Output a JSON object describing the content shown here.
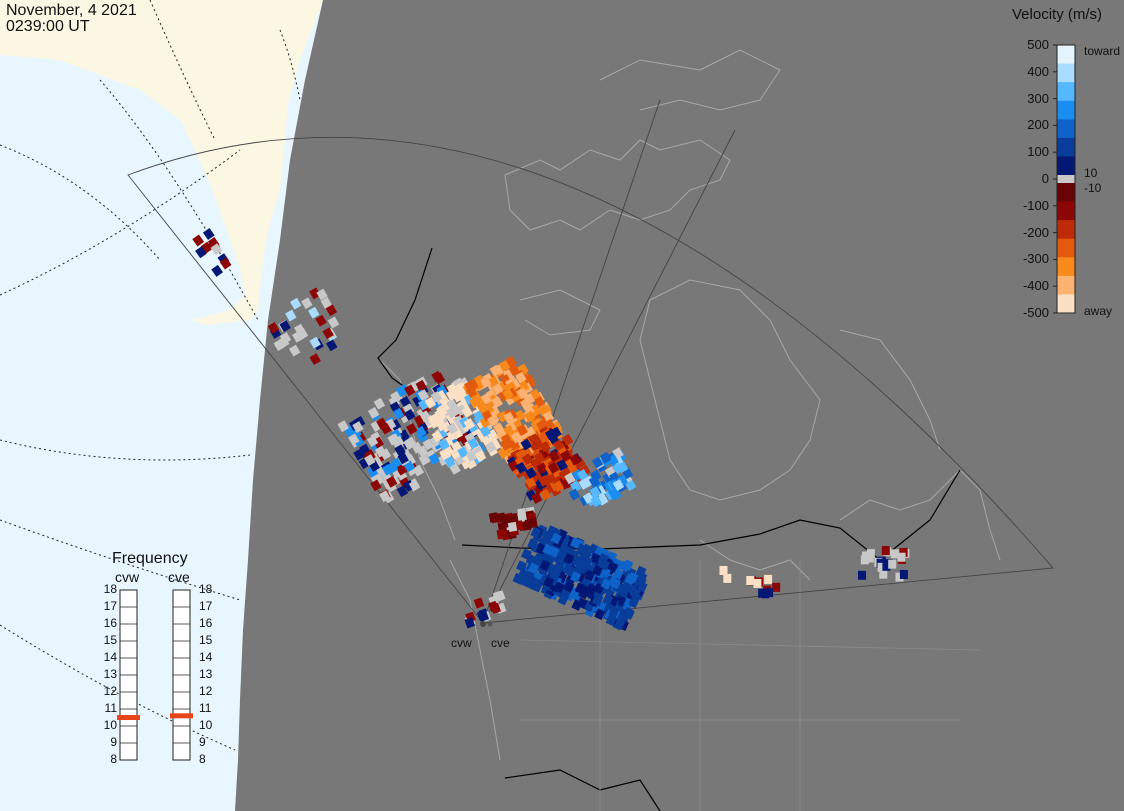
{
  "title": {
    "date": "November, 4 2021",
    "time": "0239:00 UT"
  },
  "colorbar": {
    "title": "Velocity (m/s)",
    "ticks": [
      "500",
      "400",
      "300",
      "200",
      "100",
      "0",
      "-100",
      "-200",
      "-300",
      "-400",
      "-500"
    ],
    "label_toward": "toward",
    "label_away": "away",
    "label_plus10": "10",
    "label_minus10": "-10",
    "colors": {
      "toward": [
        "#e3f4ff",
        "#aadcff",
        "#56b8ff",
        "#1a8ef0",
        "#0f62c8",
        "#083d9a",
        "#031775"
      ],
      "away": [
        "#fce0c6",
        "#fdb272",
        "#f88a1c",
        "#e35a0c",
        "#bc2a06",
        "#8c0605",
        "#6a0404"
      ],
      "low_velocity": "#c8c8c8"
    }
  },
  "frequency": {
    "title": "Frequency",
    "sites": [
      {
        "name": "cvw",
        "value_mhz": 10.5
      },
      {
        "name": "cve",
        "value_mhz": 10.6
      }
    ],
    "scale": [
      "18",
      "17",
      "16",
      "15",
      "14",
      "13",
      "12",
      "11",
      "10",
      "9",
      "8"
    ],
    "marker_color": "#e8461a"
  },
  "radar_sites": [
    {
      "name": "cvw"
    },
    {
      "name": "cve"
    }
  ],
  "map_colors": {
    "land": "#787878",
    "ocean": "#e8f6ff",
    "unmapped_land": "#fbf7e3",
    "borders": "#000000",
    "coastlines": "#a8a8a8",
    "fov_outline": "#444444"
  }
}
